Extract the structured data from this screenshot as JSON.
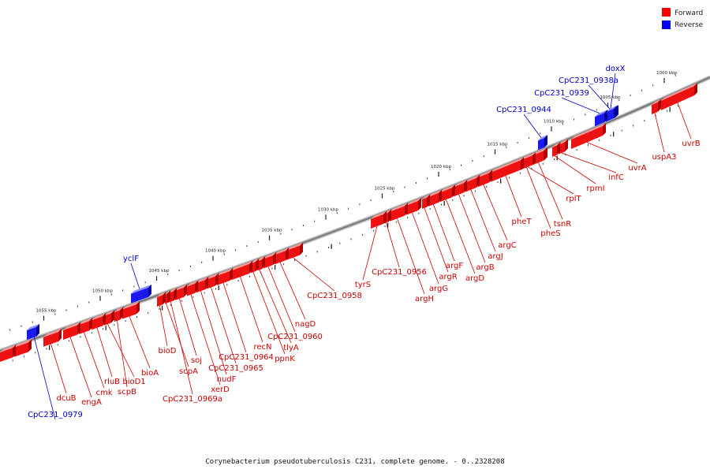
{
  "title": "Corynebacterium pseudotuberculosis C231, complete genome. - 0..2328208",
  "legend": [
    {
      "label": "Forward",
      "color": "#ff0000"
    },
    {
      "label": "Reverse",
      "color": "#0000ff"
    }
  ],
  "colors": {
    "forward": "#ee1111",
    "forward_top": "#ff9a9a",
    "forward_side": "#aa0000",
    "reverse": "#1a1aee",
    "reverse_top": "#8f8fff",
    "reverse_side": "#000099",
    "backbone": "#777777",
    "forward_label": "#cc0000",
    "reverse_label": "#0000cc"
  },
  "scale_ticks": [
    {
      "label": "1000 kbp",
      "kbp": 1000
    },
    {
      "label": "1005 kbp",
      "kbp": 1005
    },
    {
      "label": "1010 kbp",
      "kbp": 1010
    },
    {
      "label": "1015 kbp",
      "kbp": 1015
    },
    {
      "label": "1020 kbp",
      "kbp": 1020
    },
    {
      "label": "1025 kbp",
      "kbp": 1025
    },
    {
      "label": "1030 kbp",
      "kbp": 1030
    },
    {
      "label": "1035 kbp",
      "kbp": 1035
    },
    {
      "label": "1040 kbp",
      "kbp": 1040
    },
    {
      "label": "1045 kbp",
      "kbp": 1045
    },
    {
      "label": "1050 kbp",
      "kbp": 1050
    },
    {
      "label": "1055 kbp",
      "kbp": 1055
    }
  ],
  "genes": [
    {
      "name": "uvrB",
      "strand": "forward"
    },
    {
      "name": "uspA3",
      "strand": "forward"
    },
    {
      "name": "uvrA",
      "strand": "forward"
    },
    {
      "name": "infC",
      "strand": "forward"
    },
    {
      "name": "rpmI",
      "strand": "forward"
    },
    {
      "name": "rplT",
      "strand": "forward"
    },
    {
      "name": "tsnR",
      "strand": "forward"
    },
    {
      "name": "pheS",
      "strand": "forward"
    },
    {
      "name": "pheT",
      "strand": "forward"
    },
    {
      "name": "argC",
      "strand": "forward"
    },
    {
      "name": "argJ",
      "strand": "forward"
    },
    {
      "name": "argB",
      "strand": "forward"
    },
    {
      "name": "argD",
      "strand": "forward"
    },
    {
      "name": "argF",
      "strand": "forward"
    },
    {
      "name": "argR",
      "strand": "forward"
    },
    {
      "name": "argG",
      "strand": "forward"
    },
    {
      "name": "argH",
      "strand": "forward"
    },
    {
      "name": "CpC231_0956",
      "strand": "forward"
    },
    {
      "name": "tyrS",
      "strand": "forward"
    },
    {
      "name": "CpC231_0958",
      "strand": "forward"
    },
    {
      "name": "nagD",
      "strand": "forward"
    },
    {
      "name": "CpC231_0960",
      "strand": "forward"
    },
    {
      "name": "tlyA",
      "strand": "forward"
    },
    {
      "name": "ppnK",
      "strand": "forward"
    },
    {
      "name": "recN",
      "strand": "forward"
    },
    {
      "name": "CpC231_0964",
      "strand": "forward"
    },
    {
      "name": "CpC231_0965",
      "strand": "forward"
    },
    {
      "name": "nudF",
      "strand": "forward"
    },
    {
      "name": "xerD",
      "strand": "forward"
    },
    {
      "name": "soj",
      "strand": "forward"
    },
    {
      "name": "CpC231_0969a",
      "strand": "forward"
    },
    {
      "name": "scpA",
      "strand": "forward"
    },
    {
      "name": "bioD",
      "strand": "forward"
    },
    {
      "name": "bioA",
      "strand": "forward"
    },
    {
      "name": "scpB",
      "strand": "forward"
    },
    {
      "name": "bioD1",
      "strand": "forward"
    },
    {
      "name": "rluB",
      "strand": "forward"
    },
    {
      "name": "cmk",
      "strand": "forward"
    },
    {
      "name": "engA",
      "strand": "forward"
    },
    {
      "name": "dcuB",
      "strand": "forward"
    },
    {
      "name": "doxX",
      "strand": "reverse"
    },
    {
      "name": "CpC231_0938a",
      "strand": "reverse"
    },
    {
      "name": "CpC231_0939",
      "strand": "reverse"
    },
    {
      "name": "CpC231_0944",
      "strand": "reverse"
    },
    {
      "name": "yclF",
      "strand": "reverse"
    },
    {
      "name": "CpC231_0979",
      "strand": "reverse"
    }
  ]
}
